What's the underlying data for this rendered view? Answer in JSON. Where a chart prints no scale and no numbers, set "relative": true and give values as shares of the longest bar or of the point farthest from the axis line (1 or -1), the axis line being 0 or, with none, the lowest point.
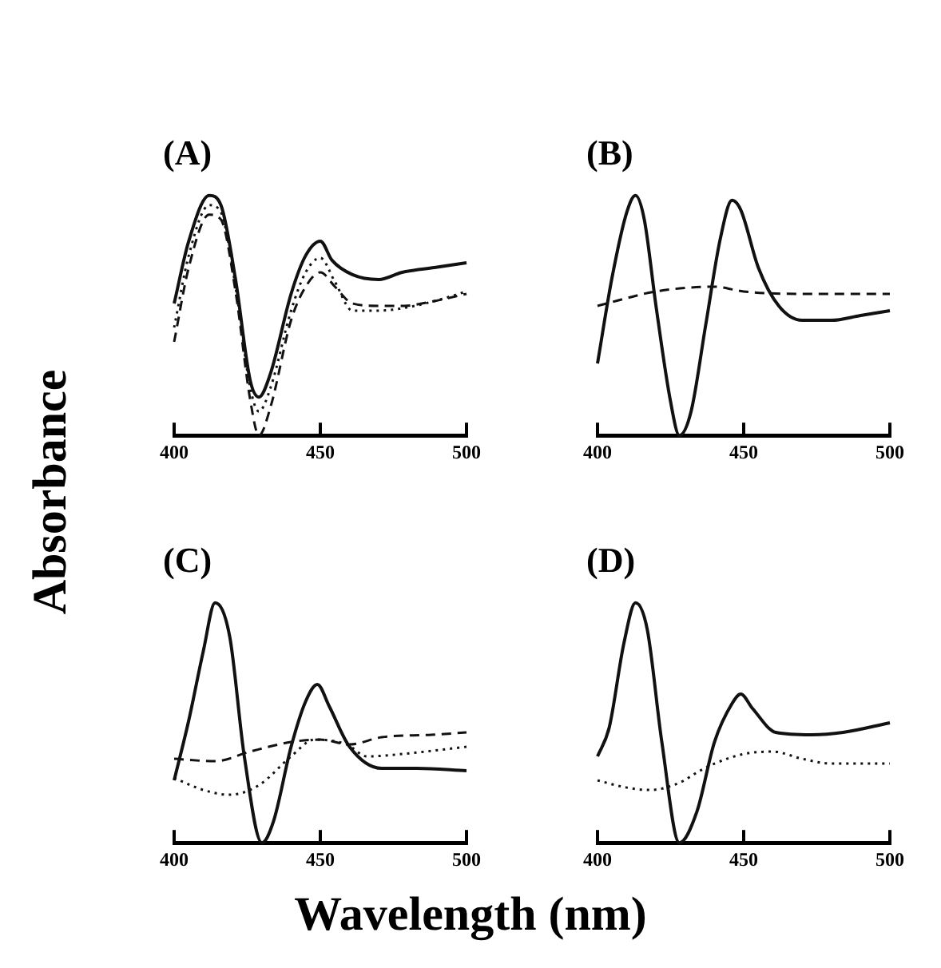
{
  "chart_data": [
    {
      "type": "line",
      "title": "(A)",
      "ylabel": "Absorbance",
      "relative": true,
      "xlim": [
        400,
        500
      ],
      "xticks": [
        400,
        450,
        500
      ],
      "grid": false,
      "legend": false,
      "marker": "none",
      "series": [
        {
          "color": "#111111",
          "line_style": "solid",
          "x": [
            400,
            405,
            412,
            416,
            421,
            426,
            429,
            433,
            440,
            445,
            450,
            454,
            461,
            470,
            478,
            489,
            500
          ],
          "values": [
            0.55,
            0.81,
            1.0,
            0.96,
            0.65,
            0.23,
            0.16,
            0.26,
            0.59,
            0.75,
            0.81,
            0.73,
            0.67,
            0.65,
            0.68,
            0.7,
            0.72
          ]
        },
        {
          "color": "#111111",
          "line_style": "dashed",
          "x": [
            400,
            405,
            412,
            416,
            421,
            426,
            429,
            433,
            440,
            445,
            450,
            455,
            461,
            470,
            478,
            489,
            500
          ],
          "values": [
            0.39,
            0.7,
            0.92,
            0.9,
            0.6,
            0.15,
            0.0,
            0.12,
            0.48,
            0.62,
            0.68,
            0.62,
            0.55,
            0.54,
            0.54,
            0.56,
            0.59
          ]
        },
        {
          "color": "#111111",
          "line_style": "dotted",
          "x": [
            400,
            405,
            412,
            416,
            421,
            426,
            429,
            433,
            440,
            445,
            450,
            455,
            461,
            470,
            478,
            489,
            500
          ],
          "values": [
            0.45,
            0.75,
            0.96,
            0.93,
            0.62,
            0.2,
            0.1,
            0.2,
            0.52,
            0.68,
            0.74,
            0.64,
            0.52,
            0.52,
            0.53,
            0.56,
            0.6
          ]
        }
      ]
    },
    {
      "type": "line",
      "title": "(B)",
      "relative": true,
      "xlim": [
        400,
        500
      ],
      "xticks": [
        400,
        450,
        500
      ],
      "grid": false,
      "legend": false,
      "marker": "none",
      "series": [
        {
          "color": "#111111",
          "line_style": "solid",
          "x": [
            400,
            405,
            410,
            413,
            416,
            420,
            425,
            428,
            432,
            437,
            442,
            446,
            449,
            455,
            462,
            470,
            480,
            490,
            500
          ],
          "values": [
            0.3,
            0.66,
            0.93,
            1.0,
            0.9,
            0.54,
            0.14,
            0.0,
            0.1,
            0.46,
            0.82,
            0.98,
            0.94,
            0.7,
            0.54,
            0.48,
            0.48,
            0.5,
            0.52
          ]
        },
        {
          "color": "#111111",
          "line_style": "dashed",
          "x": [
            400,
            420,
            440,
            450,
            470,
            500
          ],
          "values": [
            0.54,
            0.6,
            0.62,
            0.6,
            0.59,
            0.59
          ]
        }
      ]
    },
    {
      "type": "line",
      "title": "(C)",
      "relative": true,
      "xlim": [
        400,
        500
      ],
      "xticks": [
        400,
        450,
        500
      ],
      "xlabel": "Wavelength (nm)",
      "grid": false,
      "legend": false,
      "marker": "none",
      "series": [
        {
          "color": "#111111",
          "line_style": "solid",
          "x": [
            400,
            405,
            410,
            414,
            419,
            424,
            430,
            434,
            440,
            445,
            449,
            453,
            460,
            471,
            483,
            500
          ],
          "values": [
            0.26,
            0.51,
            0.8,
            1.0,
            0.86,
            0.36,
            0.0,
            0.09,
            0.4,
            0.59,
            0.66,
            0.57,
            0.4,
            0.31,
            0.31,
            0.3
          ]
        },
        {
          "color": "#111111",
          "line_style": "dashed",
          "x": [
            400,
            414,
            426,
            440,
            450,
            460,
            471,
            488,
            500
          ],
          "values": [
            0.35,
            0.34,
            0.38,
            0.42,
            0.43,
            0.41,
            0.44,
            0.45,
            0.46
          ]
        },
        {
          "color": "#111111",
          "line_style": "dotted",
          "x": [
            400,
            410,
            419,
            429,
            440,
            448,
            459,
            466,
            478,
            500
          ],
          "values": [
            0.27,
            0.22,
            0.2,
            0.24,
            0.36,
            0.43,
            0.41,
            0.36,
            0.37,
            0.4
          ]
        }
      ]
    },
    {
      "type": "line",
      "title": "(D)",
      "relative": true,
      "xlim": [
        400,
        500
      ],
      "xticks": [
        400,
        450,
        500
      ],
      "grid": false,
      "legend": false,
      "marker": "none",
      "series": [
        {
          "color": "#111111",
          "line_style": "solid",
          "x": [
            400,
            404,
            409,
            413,
            417,
            422,
            428,
            434,
            440,
            446,
            449,
            453,
            461,
            473,
            484,
            500
          ],
          "values": [
            0.36,
            0.48,
            0.83,
            1.0,
            0.89,
            0.42,
            0.0,
            0.13,
            0.42,
            0.58,
            0.62,
            0.56,
            0.46,
            0.45,
            0.46,
            0.5
          ]
        },
        {
          "color": "#111111",
          "line_style": "dotted",
          "x": [
            400,
            410,
            418,
            428,
            435,
            440,
            450,
            460,
            470,
            480,
            490,
            500
          ],
          "values": [
            0.26,
            0.23,
            0.22,
            0.25,
            0.3,
            0.33,
            0.37,
            0.38,
            0.35,
            0.33,
            0.33,
            0.33
          ]
        }
      ]
    }
  ]
}
